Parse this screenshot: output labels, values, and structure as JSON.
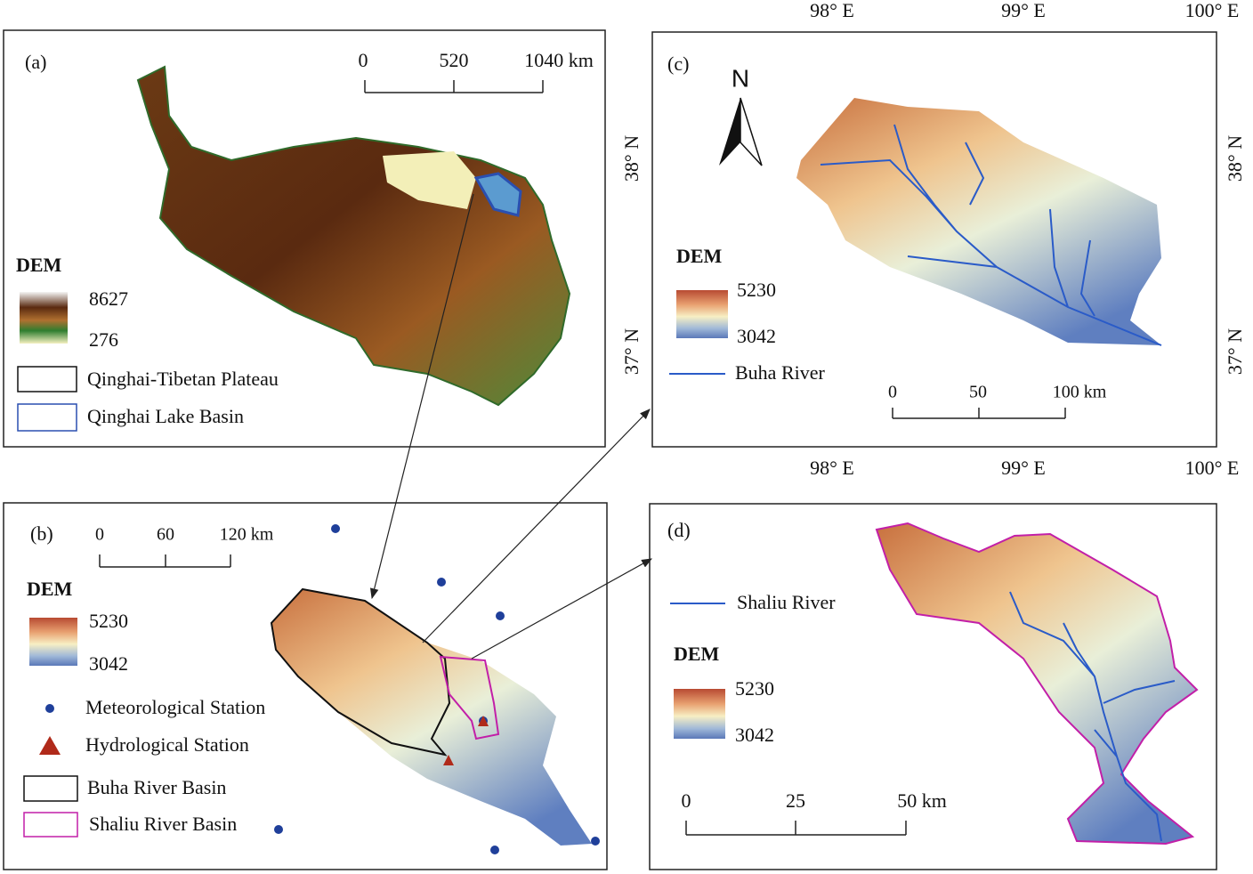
{
  "panel_a": {
    "label": "(a)",
    "scale_bar": [
      "0",
      "520",
      "1040 km"
    ],
    "legend": {
      "title": "DEM",
      "high": "8627",
      "low": "276",
      "boundaries": [
        "Qinghai-Tibetan Plateau",
        "Qinghai Lake Basin"
      ]
    }
  },
  "panel_b": {
    "label": "(b)",
    "scale_bar": [
      "0",
      "60",
      "120 km"
    ],
    "legend": {
      "title": "DEM",
      "high": "5230",
      "low": "3042",
      "stations": [
        "Meteorological Station",
        "Hydrological Station"
      ],
      "boundaries": [
        "Buha River Basin",
        "Shaliu River Basin"
      ]
    }
  },
  "panel_c": {
    "label": "(c)",
    "north": "N",
    "longitudes": [
      "98° E",
      "99° E",
      "100° E"
    ],
    "latitudes": [
      "38° N",
      "37° N"
    ],
    "legend": {
      "title": "DEM",
      "high": "5230",
      "low": "3042",
      "river": "Buha River"
    },
    "scale_bar": [
      "0",
      "50",
      "100 km"
    ]
  },
  "panel_d": {
    "label": "(d)",
    "legend": {
      "river": "Shaliu River",
      "title": "DEM",
      "high": "5230",
      "low": "3042"
    },
    "scale_bar": [
      "0",
      "25",
      "50 km"
    ]
  }
}
